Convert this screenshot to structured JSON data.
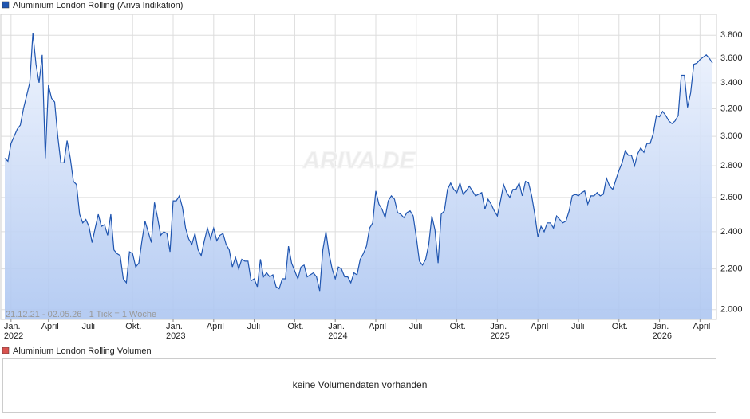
{
  "chart_data": {
    "type": "line",
    "series": [
      {
        "name": "Aluminium London Rolling (Ariva Indikation)",
        "color": "#1f55b0",
        "values": [
          2850,
          2830,
          2950,
          3000,
          3050,
          3080,
          3200,
          3300,
          3400,
          3820,
          3550,
          3400,
          3630,
          2850,
          3380,
          3280,
          3250,
          3000,
          2820,
          2820,
          2970,
          2850,
          2700,
          2680,
          2500,
          2450,
          2470,
          2430,
          2340,
          2420,
          2500,
          2430,
          2440,
          2380,
          2500,
          2300,
          2280,
          2270,
          2150,
          2130,
          2290,
          2280,
          2210,
          2230,
          2350,
          2460,
          2400,
          2340,
          2570,
          2480,
          2380,
          2400,
          2390,
          2290,
          2580,
          2580,
          2610,
          2540,
          2420,
          2360,
          2330,
          2390,
          2300,
          2270,
          2350,
          2420,
          2360,
          2420,
          2350,
          2380,
          2390,
          2330,
          2300,
          2210,
          2260,
          2200,
          2250,
          2240,
          2240,
          2140,
          2150,
          2110,
          2250,
          2160,
          2180,
          2160,
          2170,
          2110,
          2100,
          2150,
          2150,
          2320,
          2230,
          2190,
          2150,
          2210,
          2220,
          2160,
          2170,
          2180,
          2160,
          2090,
          2300,
          2400,
          2280,
          2200,
          2150,
          2210,
          2200,
          2160,
          2160,
          2130,
          2180,
          2170,
          2250,
          2280,
          2320,
          2420,
          2450,
          2640,
          2560,
          2530,
          2480,
          2580,
          2610,
          2590,
          2510,
          2500,
          2480,
          2510,
          2520,
          2490,
          2370,
          2240,
          2220,
          2250,
          2330,
          2490,
          2410,
          2230,
          2500,
          2520,
          2650,
          2690,
          2650,
          2630,
          2690,
          2620,
          2640,
          2670,
          2640,
          2610,
          2620,
          2630,
          2530,
          2590,
          2560,
          2520,
          2490,
          2580,
          2680,
          2630,
          2600,
          2650,
          2650,
          2690,
          2610,
          2700,
          2690,
          2610,
          2500,
          2370,
          2430,
          2400,
          2450,
          2450,
          2420,
          2490,
          2470,
          2450,
          2460,
          2520,
          2610,
          2620,
          2610,
          2630,
          2640,
          2560,
          2610,
          2610,
          2630,
          2610,
          2620,
          2720,
          2670,
          2650,
          2710,
          2770,
          2820,
          2900,
          2870,
          2870,
          2800,
          2880,
          2920,
          2890,
          2950,
          2950,
          3020,
          3150,
          3140,
          3180,
          3150,
          3110,
          3090,
          3110,
          3150,
          3460,
          3460,
          3210,
          3320,
          3550,
          3560,
          3590,
          3610,
          3630,
          3600,
          3560
        ]
      }
    ],
    "categories": [
      null,
      null,
      "Jan. 2022",
      null,
      null,
      null,
      null,
      null,
      null,
      null,
      null,
      null,
      null,
      null,
      "April",
      null,
      null,
      null,
      null,
      null,
      null,
      null,
      null,
      null,
      null,
      null,
      null,
      "Juli",
      null,
      null,
      null,
      null,
      null,
      null,
      null,
      null,
      null,
      null,
      null,
      null,
      null,
      "Okt.",
      null,
      null,
      null,
      null,
      null,
      null,
      null,
      null,
      null,
      null,
      null,
      null,
      "Jan. 2023",
      null,
      null,
      null,
      null,
      null,
      null,
      null,
      null,
      null,
      null,
      null,
      null,
      "April",
      null,
      null,
      null,
      null,
      null,
      null,
      null,
      null,
      null,
      null,
      null,
      null,
      "Juli",
      null,
      null,
      null,
      null,
      null,
      null,
      null,
      null,
      null,
      null,
      null,
      null,
      "Okt.",
      null,
      null,
      null,
      null,
      null,
      null,
      null,
      null,
      null,
      null,
      null,
      null,
      "Jan. 2024",
      null,
      null,
      null,
      null,
      null,
      null,
      null,
      null,
      null,
      null,
      null,
      null,
      "April",
      null,
      null,
      null,
      null,
      null,
      null,
      null,
      null,
      null,
      null,
      null,
      null,
      "Juli",
      null,
      null,
      null,
      null,
      null,
      null,
      null,
      null,
      null,
      null,
      null,
      null,
      "Okt.",
      null,
      null,
      null,
      null,
      null,
      null,
      null,
      null,
      null,
      null,
      null,
      null,
      "Jan. 2025",
      null,
      null,
      null,
      null,
      null,
      null,
      null,
      null,
      null,
      null,
      null,
      null,
      "April",
      null,
      null,
      null,
      null,
      null,
      null,
      null,
      null,
      null,
      null,
      null,
      null,
      "Juli",
      null,
      null,
      null,
      null,
      null,
      null,
      null,
      null,
      null,
      null,
      null,
      null,
      "Okt.",
      null,
      null,
      null,
      null,
      null,
      null,
      null,
      null,
      null,
      null,
      null,
      null,
      "Jan. 2026",
      null,
      null,
      null,
      null,
      null,
      null,
      null,
      null,
      null,
      null,
      null,
      null,
      "April",
      null,
      null,
      null,
      null
    ],
    "ylim": [
      1955,
      3990
    ],
    "yticks": [
      {
        "value": 2000,
        "label": "2.000"
      },
      {
        "value": 2200,
        "label": "2.200"
      },
      {
        "value": 2400,
        "label": "2.400"
      },
      {
        "value": 2600,
        "label": "2.600"
      },
      {
        "value": 2800,
        "label": "2.800"
      },
      {
        "value": 3000,
        "label": "3.000"
      },
      {
        "value": 3200,
        "label": "3.200"
      },
      {
        "value": 3400,
        "label": "3.400"
      },
      {
        "value": 3600,
        "label": "3.600"
      },
      {
        "value": 3800,
        "label": "3.800"
      }
    ],
    "log_scale": true,
    "grid": true,
    "note": "21.12.21 - 02.05.26   1 Tick = 1 Woche",
    "watermark": "ARIVA.DE"
  },
  "volume_panel": {
    "title": "Aluminium London Rolling Volumen",
    "color": "#d9534f",
    "message": "keine Volumendaten vorhanden"
  }
}
